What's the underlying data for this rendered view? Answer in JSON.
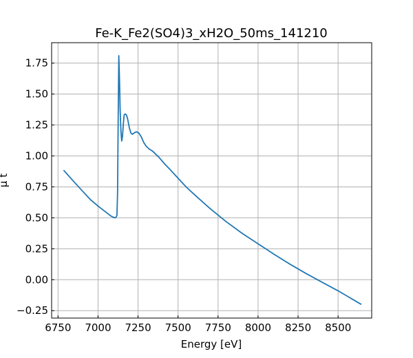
{
  "chart_data": {
    "type": "line",
    "title": "Fe-K_Fe2(SO4)3_xH2O_50ms_141210",
    "xlabel": "Energy [eV]",
    "ylabel": "μ t",
    "xlim": [
      6710,
      8710
    ],
    "ylim": [
      -0.31,
      1.915
    ],
    "xticks": [
      6750,
      7000,
      7250,
      7500,
      7750,
      8000,
      8250,
      8500
    ],
    "yticks": [
      -0.25,
      0.0,
      0.25,
      0.5,
      0.75,
      1.0,
      1.25,
      1.5,
      1.75
    ],
    "xtick_labels": [
      "6750",
      "7000",
      "7250",
      "7500",
      "7750",
      "8000",
      "8250",
      "8500"
    ],
    "ytick_labels": [
      "−0.25",
      "0.00",
      "0.25",
      "0.50",
      "0.75",
      "1.00",
      "1.25",
      "1.50",
      "1.75"
    ],
    "grid": true,
    "series": [
      {
        "color": "#1f77b4",
        "x": [
          6785,
          6850,
          6900,
          6950,
          7000,
          7050,
          7080,
          7095,
          7105,
          7112,
          7118,
          7122,
          7126,
          7130,
          7134,
          7138,
          7143,
          7148,
          7153,
          7158,
          7163,
          7170,
          7178,
          7185,
          7195,
          7205,
          7215,
          7225,
          7240,
          7255,
          7270,
          7285,
          7300,
          7320,
          7340,
          7360,
          7380,
          7400,
          7420,
          7450,
          7500,
          7550,
          7600,
          7700,
          7800,
          7900,
          8000,
          8100,
          8200,
          8300,
          8400,
          8500,
          8645
        ],
        "y": [
          0.885,
          0.79,
          0.72,
          0.65,
          0.595,
          0.545,
          0.515,
          0.505,
          0.5,
          0.505,
          0.52,
          0.7,
          1.3,
          1.81,
          1.62,
          1.38,
          1.2,
          1.12,
          1.16,
          1.26,
          1.33,
          1.34,
          1.33,
          1.3,
          1.23,
          1.185,
          1.175,
          1.185,
          1.195,
          1.185,
          1.155,
          1.11,
          1.08,
          1.055,
          1.04,
          1.015,
          0.99,
          0.96,
          0.93,
          0.89,
          0.82,
          0.75,
          0.69,
          0.575,
          0.47,
          0.375,
          0.29,
          0.205,
          0.125,
          0.05,
          -0.02,
          -0.09,
          -0.2
        ]
      }
    ]
  }
}
